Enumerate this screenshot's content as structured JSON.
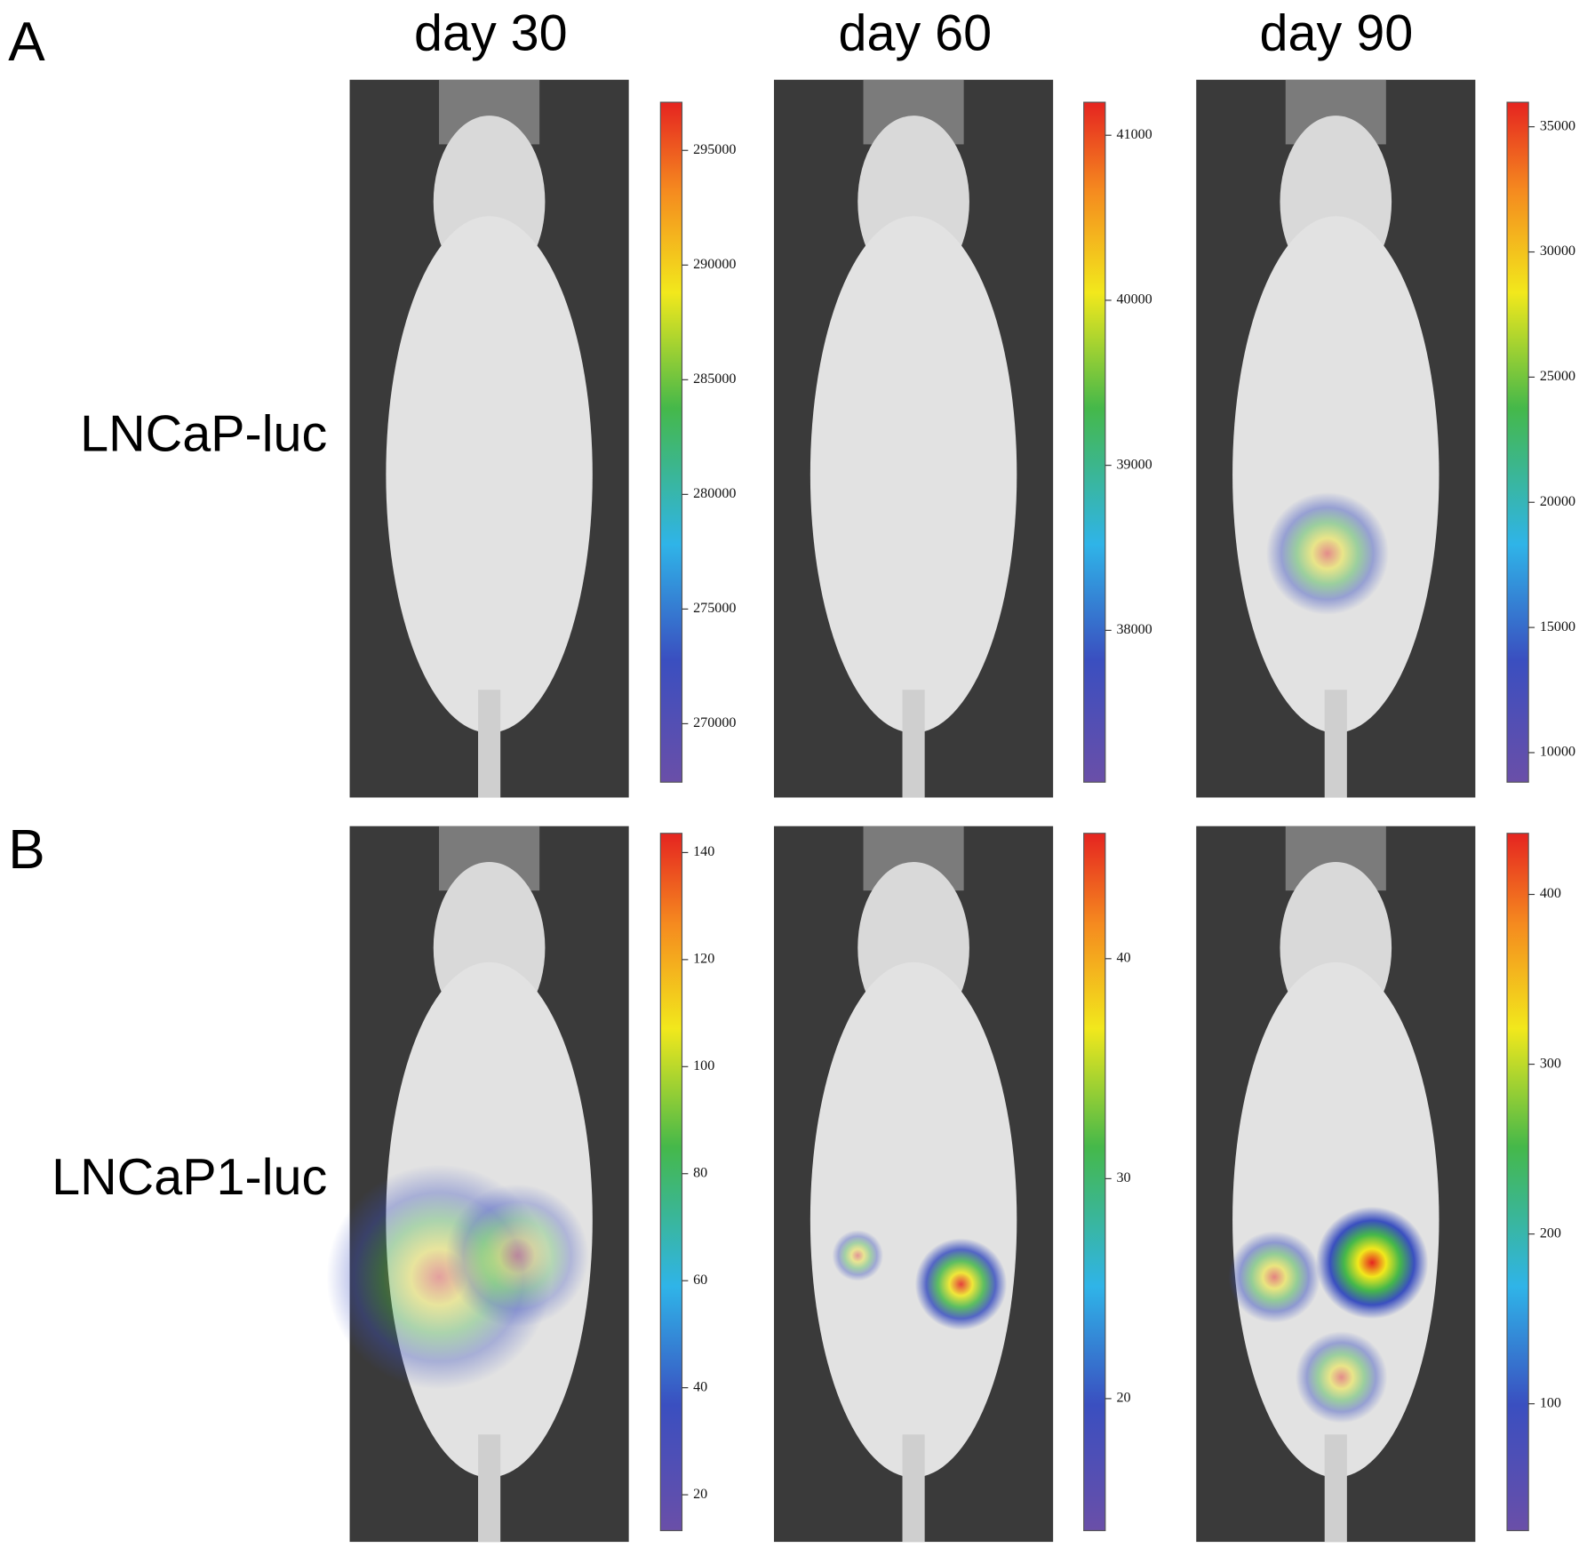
{
  "columns": [
    "day 30",
    "day 60",
    "day 90"
  ],
  "panels": [
    {
      "label": "A",
      "row_label": "LNCaP-luc",
      "colorbars": [
        {
          "ylim": [
            267450,
            297100
          ],
          "yticks": [
            270000,
            275000,
            280000,
            285000,
            290000,
            295000
          ]
        },
        {
          "ylim": [
            37080,
            41200
          ],
          "yticks": [
            38000,
            39000,
            40000,
            41000
          ]
        },
        {
          "ylim": [
            8820,
            35980
          ],
          "yticks": [
            10000,
            15000,
            20000,
            25000,
            30000,
            35000
          ]
        }
      ]
    },
    {
      "label": "B",
      "row_label": "LNCaP1-luc",
      "colorbars": [
        {
          "ylim": [
            13.3,
            143.6
          ],
          "yticks": [
            20,
            40,
            60,
            80,
            100,
            120,
            140
          ]
        },
        {
          "ylim": [
            14,
            45.7
          ],
          "yticks": [
            20,
            30,
            40
          ]
        },
        {
          "ylim": [
            25.3,
            436
          ],
          "yticks": [
            100,
            200,
            300,
            400
          ]
        }
      ]
    }
  ]
}
